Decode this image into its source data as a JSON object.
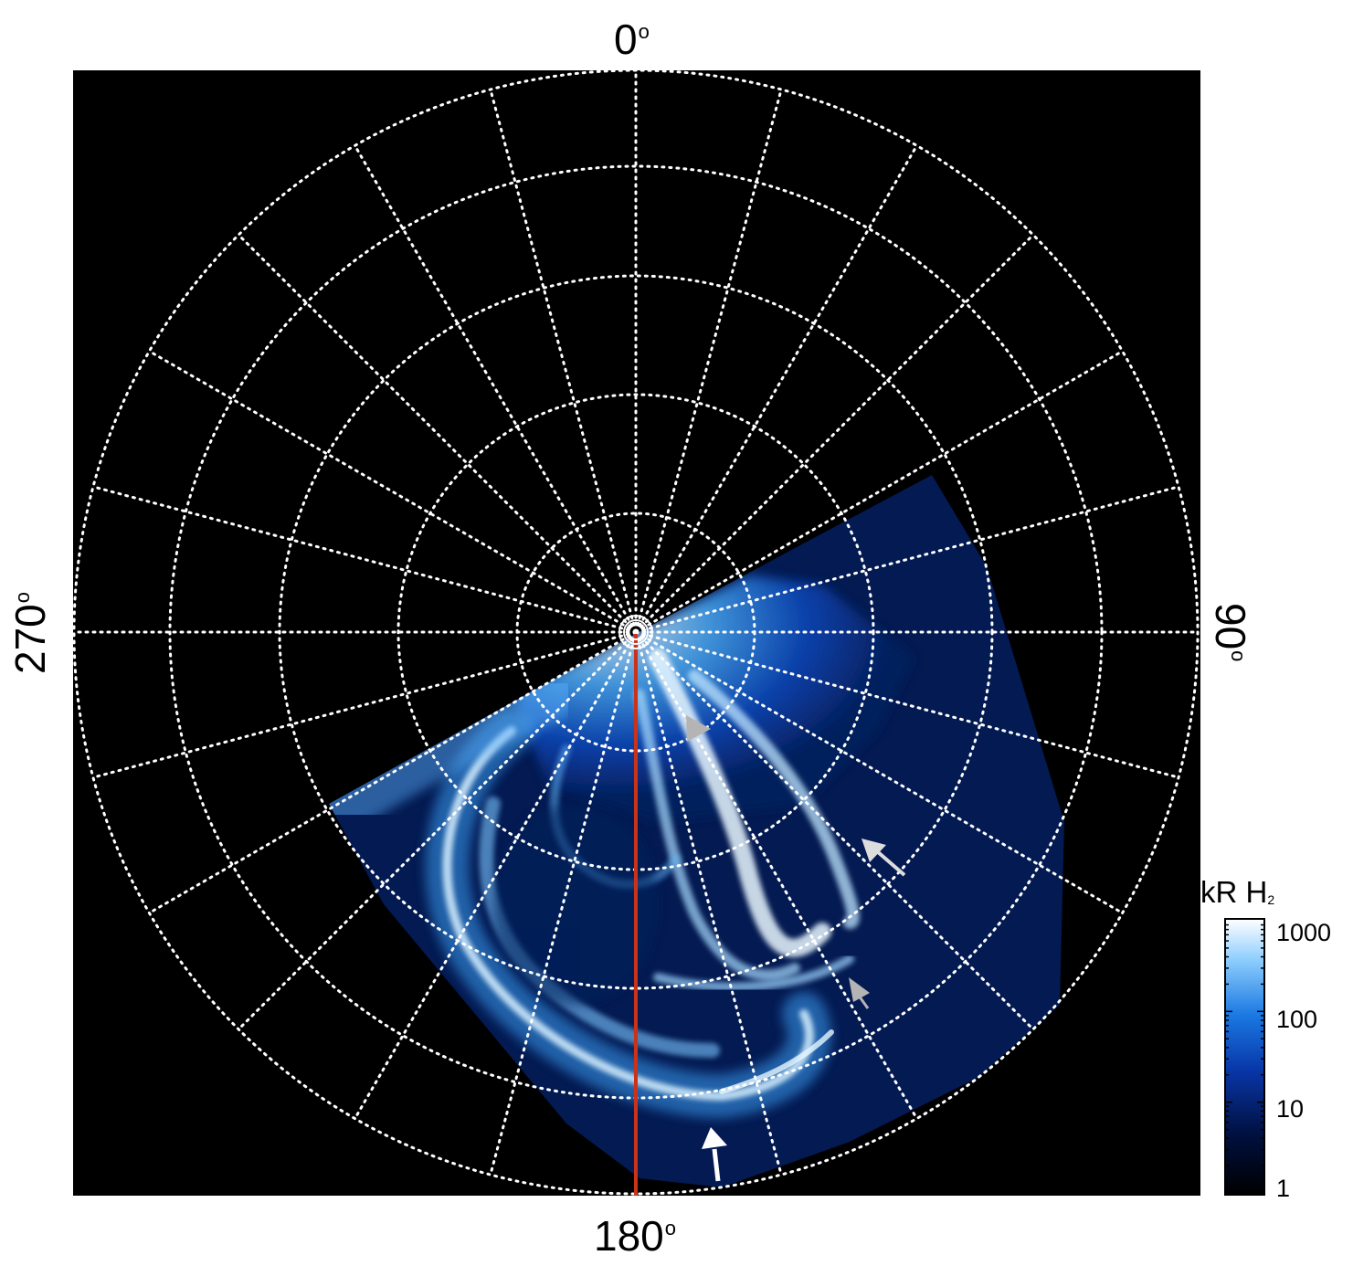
{
  "axes": {
    "top_label": "0",
    "right_label": "90",
    "bottom_label": "180",
    "left_label": "270",
    "degree_symbol": "o"
  },
  "colorbar": {
    "title": "kR H",
    "title_subscript": "2",
    "ticks": [
      "1000",
      "100",
      "10",
      "1"
    ],
    "scale": "log",
    "range": [
      1,
      1000
    ],
    "colors": [
      "#000000",
      "#00124a",
      "#0a3fb0",
      "#1f7fe6",
      "#8fd0ff",
      "#ffffff"
    ]
  },
  "image": {
    "background": "#000000",
    "grid_color": "#ffffff",
    "meridian_line_color": "#c8331a",
    "arrow_white": "#ffffff",
    "arrow_gray": "#b4b4b4"
  }
}
